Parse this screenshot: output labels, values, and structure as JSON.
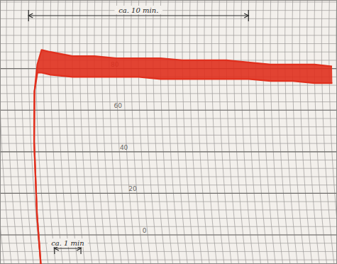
{
  "chart_data": {
    "type": "line",
    "color": "#e0301e",
    "xlim": [
      0,
      14
    ],
    "ylim": [
      -14,
      113
    ],
    "yticks": [
      0,
      20,
      40,
      60,
      80
    ],
    "grid": true,
    "tick_labels": "y",
    "x": [
      0,
      0.05,
      0.15,
      0.25,
      0.4,
      0.6,
      1,
      2,
      3,
      4,
      5,
      6,
      7,
      8,
      9,
      10,
      11,
      12,
      13,
      13.8
    ],
    "series": [
      {
        "values": [
          -14,
          10,
          45,
          69,
          82,
          89,
          88,
          86,
          86,
          85,
          85,
          85,
          84,
          84,
          84,
          83,
          82,
          82,
          82,
          81
        ]
      },
      {
        "values": [
          -14,
          10,
          45,
          69,
          78,
          78,
          77,
          76,
          76,
          76,
          76,
          75,
          75,
          75,
          75,
          75,
          74,
          74,
          73,
          73
        ]
      }
    ],
    "annotations": [
      {
        "text": "ca. 10 min.",
        "x_start": 0,
        "x_end": 10
      },
      {
        "text": "ca. 1 min",
        "x_start": 0.7,
        "x_end": 1.9
      }
    ]
  }
}
